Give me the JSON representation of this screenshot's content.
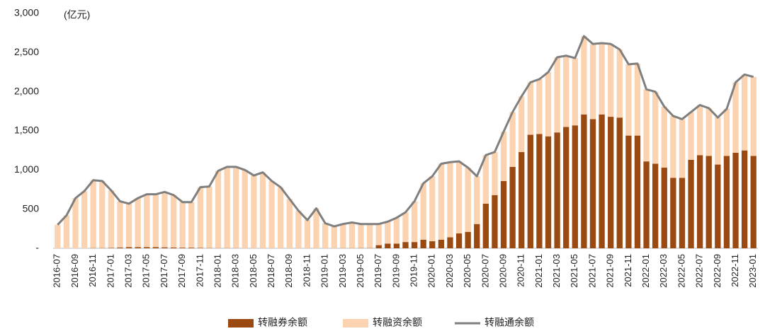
{
  "chart_data": {
    "type": "bar",
    "stacked": true,
    "unit": "(亿元)",
    "categories": [
      "2016-07",
      null,
      "2016-09",
      null,
      "2016-11",
      null,
      "2017-01",
      null,
      "2017-03",
      null,
      "2017-05",
      null,
      "2017-07",
      null,
      "2017-09",
      null,
      "2017-11",
      null,
      "2018-01",
      null,
      "2018-03",
      null,
      "2018-05",
      null,
      "2018-07",
      null,
      "2018-09",
      null,
      "2018-11",
      null,
      "2019-01",
      null,
      "2019-03",
      null,
      "2019-05",
      null,
      "2019-07",
      null,
      "2019-09",
      null,
      "2019-11",
      null,
      "2020-01",
      null,
      "2020-03",
      null,
      "2020-05",
      null,
      "2020-07",
      null,
      "2020-09",
      null,
      "2020-11",
      null,
      "2021-01",
      null,
      "2021-03",
      null,
      "2021-05",
      null,
      "2021-07",
      null,
      "2021-09",
      null,
      "2021-11",
      null,
      "2022-01",
      null,
      "2022-03",
      null,
      "2022-05",
      null,
      "2022-07",
      null,
      "2022-09",
      null,
      "2022-11",
      null,
      "2023-01"
    ],
    "series": [
      {
        "name": "转融券余额",
        "type": "bar",
        "color": "#9a4a10",
        "values": [
          0,
          0,
          0,
          0,
          3,
          3,
          5,
          10,
          15,
          15,
          15,
          15,
          12,
          10,
          8,
          8,
          5,
          3,
          2,
          2,
          2,
          1,
          1,
          1,
          1,
          1,
          1,
          1,
          1,
          1,
          1,
          1,
          2,
          2,
          3,
          3,
          40,
          60,
          60,
          80,
          80,
          110,
          90,
          110,
          140,
          190,
          210,
          310,
          570,
          680,
          860,
          1040,
          1230,
          1450,
          1460,
          1430,
          1480,
          1550,
          1570,
          1710,
          1650,
          1710,
          1680,
          1670,
          1440,
          1440,
          1110,
          1080,
          1030,
          900,
          900,
          1130,
          1190,
          1180,
          1070,
          1180,
          1220,
          1250,
          1180
        ]
      },
      {
        "name": "转融资余额",
        "type": "bar",
        "color": "#fcd3b0",
        "values": [
          300,
          420,
          640,
          730,
          867,
          857,
          735,
          590,
          555,
          625,
          675,
          675,
          708,
          670,
          582,
          582,
          775,
          787,
          988,
          1038,
          1038,
          999,
          929,
          969,
          859,
          779,
          629,
          479,
          359,
          509,
          319,
          279,
          308,
          328,
          307,
          307,
          270,
          280,
          330,
          380,
          520,
          720,
          830,
          970,
          960,
          920,
          820,
          610,
          620,
          550,
          630,
          700,
          710,
          670,
          700,
          820,
          960,
          910,
          860,
          1000,
          960,
          910,
          930,
          870,
          910,
          920,
          920,
          920,
          780,
          790,
          750,
          610,
          640,
          610,
          600,
          600,
          900,
          970,
          1010
        ]
      },
      {
        "name": "转融通余额",
        "type": "line",
        "color": "#7f7f7f",
        "values": [
          300,
          420,
          640,
          730,
          870,
          860,
          740,
          600,
          570,
          640,
          690,
          690,
          720,
          680,
          590,
          590,
          780,
          790,
          990,
          1040,
          1040,
          1000,
          930,
          970,
          860,
          780,
          630,
          480,
          360,
          510,
          320,
          280,
          310,
          330,
          310,
          310,
          310,
          340,
          390,
          460,
          600,
          830,
          920,
          1080,
          1100,
          1110,
          1030,
          920,
          1190,
          1230,
          1490,
          1740,
          1940,
          2120,
          2160,
          2250,
          2440,
          2460,
          2430,
          2710,
          2610,
          2620,
          2610,
          2540,
          2350,
          2360,
          2030,
          2000,
          1810,
          1690,
          1650,
          1740,
          1830,
          1790,
          1670,
          1780,
          2120,
          2220,
          2190
        ]
      }
    ],
    "ylim": [
      0,
      3000
    ],
    "yticks": [
      {
        "value": 0,
        "label": "-"
      },
      500,
      {
        "value": 1000,
        "label": "1,000"
      },
      {
        "value": 1500,
        "label": "1,500"
      },
      {
        "value": 2000,
        "label": "2,000"
      },
      {
        "value": 2500,
        "label": "2,500"
      },
      {
        "value": 3000,
        "label": "3,000"
      }
    ],
    "grid": false,
    "legend": "bottom"
  }
}
